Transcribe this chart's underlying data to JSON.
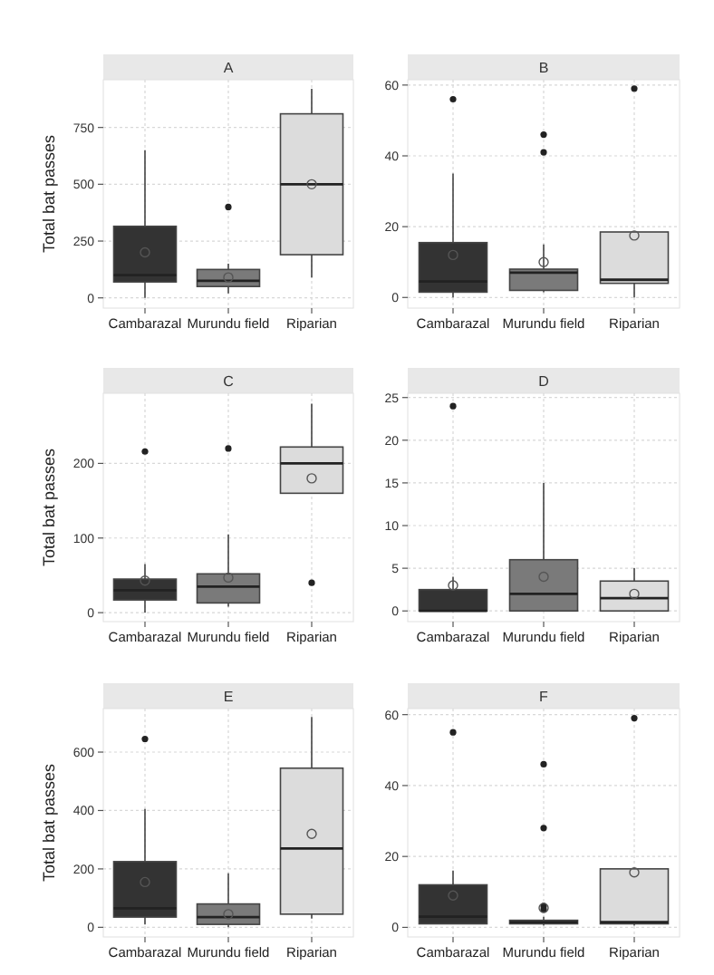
{
  "chart_data": [
    {
      "type": "box",
      "title": "A",
      "ylabel": "Total bat passes",
      "categories": [
        "Cambarazal",
        "Murundu field",
        "Riparian"
      ],
      "colors": [
        "#333333",
        "#7a7a7a",
        "#dcdcdc"
      ],
      "ylim": [
        -45,
        960
      ],
      "yticks": [
        0,
        250,
        500,
        750
      ],
      "grid": true,
      "boxes": [
        {
          "low": 0,
          "q1": 70,
          "median": 100,
          "q3": 315,
          "high": 650,
          "mean": 200
        },
        {
          "low": 20,
          "q1": 50,
          "median": 75,
          "q3": 125,
          "high": 150,
          "mean": 90,
          "outliers": [
            400
          ]
        },
        {
          "low": 90,
          "q1": 190,
          "median": 500,
          "q3": 810,
          "high": 920,
          "mean": 500
        }
      ]
    },
    {
      "type": "box",
      "title": "B",
      "categories": [
        "Cambarazal",
        "Murundu field",
        "Riparian"
      ],
      "colors": [
        "#333333",
        "#7a7a7a",
        "#dcdcdc"
      ],
      "ylim": [
        -3,
        61.5
      ],
      "yticks": [
        0,
        20,
        40,
        60
      ],
      "grid": true,
      "boxes": [
        {
          "low": 0,
          "q1": 1.5,
          "median": 4.5,
          "q3": 15.5,
          "high": 35,
          "mean": 12,
          "outliers": [
            56
          ]
        },
        {
          "low": 1.5,
          "q1": 2,
          "median": 7,
          "q3": 8,
          "high": 15,
          "mean": 10,
          "outliers": [
            41,
            46
          ]
        },
        {
          "low": 0,
          "q1": 4,
          "median": 5,
          "q3": 18.5,
          "high": 18.5,
          "mean": 17.5,
          "outliers": [
            59
          ]
        }
      ]
    },
    {
      "type": "box",
      "title": "C",
      "ylabel": "Total bat passes",
      "categories": [
        "Cambarazal",
        "Murundu field",
        "Riparian"
      ],
      "colors": [
        "#333333",
        "#7a7a7a",
        "#dcdcdc"
      ],
      "ylim": [
        -12,
        294
      ],
      "yticks": [
        0,
        100,
        200
      ],
      "grid": true,
      "boxes": [
        {
          "low": 0,
          "q1": 17,
          "median": 30,
          "q3": 45,
          "high": 65,
          "mean": 43,
          "outliers": [
            216
          ]
        },
        {
          "low": 8,
          "q1": 13,
          "median": 35,
          "q3": 52,
          "high": 105,
          "mean": 47,
          "outliers": [
            220
          ]
        },
        {
          "low": 160,
          "q1": 160,
          "median": 200,
          "q3": 222,
          "high": 280,
          "mean": 180,
          "outliers": [
            40
          ]
        }
      ]
    },
    {
      "type": "box",
      "title": "D",
      "categories": [
        "Cambarazal",
        "Murundu field",
        "Riparian"
      ],
      "colors": [
        "#333333",
        "#7a7a7a",
        "#dcdcdc"
      ],
      "ylim": [
        -1.25,
        25.5
      ],
      "yticks": [
        0,
        5,
        10,
        15,
        20,
        25
      ],
      "grid": true,
      "boxes": [
        {
          "low": 0,
          "q1": 0,
          "median": 0,
          "q3": 2.5,
          "high": 4,
          "mean": 3,
          "outliers": [
            24
          ]
        },
        {
          "low": 0,
          "q1": 0,
          "median": 2,
          "q3": 6,
          "high": 15,
          "mean": 4
        },
        {
          "low": 0,
          "q1": 0,
          "median": 1.5,
          "q3": 3.5,
          "high": 5,
          "mean": 2
        }
      ]
    },
    {
      "type": "box",
      "title": "E",
      "ylabel": "Total bat passes",
      "categories": [
        "Cambarazal",
        "Murundu field",
        "Riparian"
      ],
      "colors": [
        "#333333",
        "#7a7a7a",
        "#dcdcdc"
      ],
      "ylim": [
        -33,
        749
      ],
      "yticks": [
        0,
        200,
        400,
        600
      ],
      "grid": true,
      "boxes": [
        {
          "low": 10,
          "q1": 35,
          "median": 65,
          "q3": 225,
          "high": 405,
          "mean": 155,
          "outliers": [
            645
          ]
        },
        {
          "low": 0,
          "q1": 10,
          "median": 35,
          "q3": 80,
          "high": 185,
          "mean": 45
        },
        {
          "low": 30,
          "q1": 45,
          "median": 270,
          "q3": 545,
          "high": 720,
          "mean": 320
        }
      ]
    },
    {
      "type": "box",
      "title": "F",
      "categories": [
        "Cambarazal",
        "Murundu field",
        "Riparian"
      ],
      "colors": [
        "#333333",
        "#7a7a7a",
        "#dcdcdc"
      ],
      "ylim": [
        -2.7,
        61.7
      ],
      "yticks": [
        0,
        20,
        40,
        60
      ],
      "grid": true,
      "boxes": [
        {
          "low": 1,
          "q1": 1,
          "median": 3,
          "q3": 12,
          "high": 16,
          "mean": 9,
          "outliers": [
            55
          ]
        },
        {
          "low": 0.5,
          "q1": 1,
          "median": 1.5,
          "q3": 2,
          "high": 3,
          "mean": 5.5,
          "outliers": [
            5,
            6,
            28,
            46
          ]
        },
        {
          "low": 0.5,
          "q1": 1,
          "median": 1.5,
          "q3": 16.5,
          "high": 16.5,
          "mean": 15.5,
          "outliers": [
            59
          ]
        }
      ]
    }
  ]
}
